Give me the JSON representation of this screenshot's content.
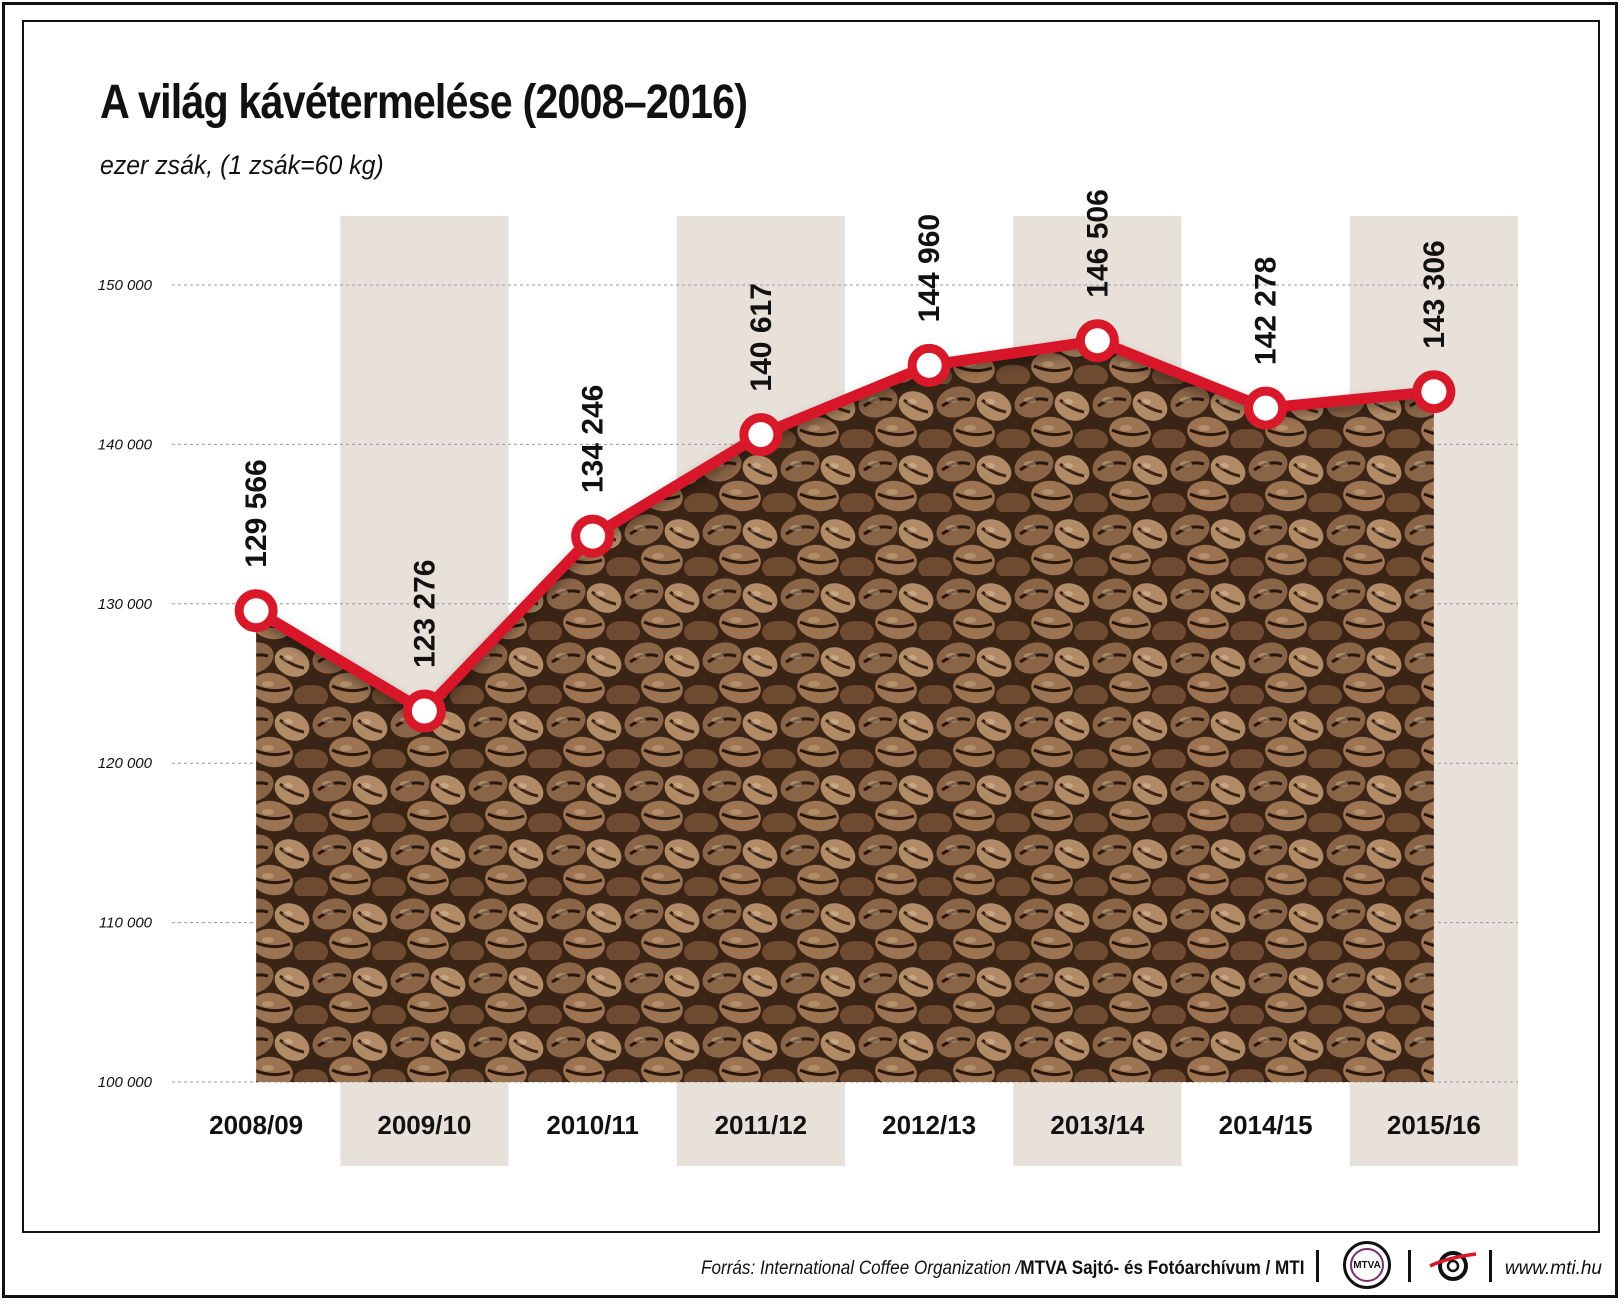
{
  "title": "A világ kávétermelése (2008–2016)",
  "subtitle": "ezer zsák, (1 zsák=60 kg)",
  "footer": {
    "source_prefix": "Forrás: International Coffee Organization / ",
    "source_bold": "MTVA Sajtó- és Fotóarchívum / MTI",
    "logo_mtva": "MTVA",
    "url": "www.mti.hu"
  },
  "colors": {
    "line": "#d7192a",
    "band": "#e8e1da",
    "gridline": "#999999",
    "text": "#111111"
  },
  "chart_data": {
    "type": "line",
    "categories": [
      "2008/09",
      "2009/10",
      "2010/11",
      "2011/12",
      "2012/13",
      "2013/14",
      "2014/15",
      "2015/16"
    ],
    "values": [
      129566,
      123276,
      134246,
      140617,
      144960,
      146506,
      142278,
      143306
    ],
    "value_labels": [
      "129 566",
      "123 276",
      "134 246",
      "140 617",
      "144 960",
      "146 506",
      "142 278",
      "143 306"
    ],
    "y_ticks": [
      100000,
      110000,
      120000,
      130000,
      140000,
      150000
    ],
    "y_tick_labels": [
      "100 000",
      "110 000",
      "120 000",
      "130 000",
      "140 000",
      "150 000"
    ],
    "ylim": [
      100000,
      150000
    ],
    "grid": true,
    "alternating_bands": [
      1,
      3,
      5,
      7
    ],
    "area_fill": "coffee-beans-photo"
  }
}
